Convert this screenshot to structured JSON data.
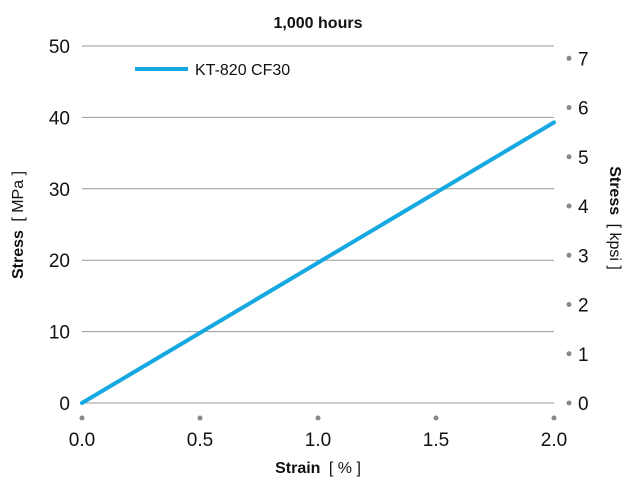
{
  "chart_data": {
    "type": "line",
    "title": "1,000 hours",
    "xlabel": {
      "bold": "Strain",
      "unit": "[ % ]"
    },
    "ylabel": {
      "bold": "Stress",
      "unit": "[ MPa ]"
    },
    "y2label": {
      "bold": "Stress",
      "unit": "[ kpsi ]"
    },
    "xlim": [
      0,
      2.0
    ],
    "ylim": [
      0,
      50
    ],
    "y2lim": [
      0,
      7.25
    ],
    "x_ticks": [
      "0.0",
      "0.5",
      "1.0",
      "1.5",
      "2.0"
    ],
    "y_ticks": [
      "0",
      "10",
      "20",
      "30",
      "40",
      "50"
    ],
    "y2_ticks": [
      "0",
      "1",
      "2",
      "3",
      "4",
      "5",
      "6",
      "7"
    ],
    "grid": true,
    "legend_position": "top-left",
    "series": [
      {
        "name": "KT-820 CF30",
        "color": "#16a8e0",
        "x": [
          0.0,
          2.0
        ],
        "y": [
          0,
          39.3
        ]
      }
    ]
  }
}
